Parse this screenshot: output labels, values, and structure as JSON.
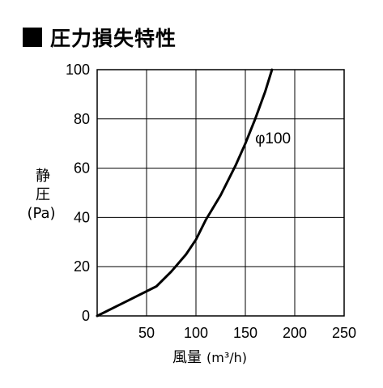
{
  "title": "圧力損失特性",
  "chart_data": {
    "type": "line",
    "title": "圧力損失特性",
    "xlabel": "風量 (m³/h)",
    "xlabel_main": "風量",
    "xlabel_unit": "(m³/h)",
    "ylabel_line1": "静",
    "ylabel_line2": "圧",
    "ylabel_unit": "(Pa)",
    "xlim": [
      0,
      250
    ],
    "ylim": [
      0,
      100
    ],
    "xticks": [
      50,
      100,
      150,
      200,
      250
    ],
    "yticks": [
      0,
      20,
      40,
      60,
      80,
      100
    ],
    "grid": true,
    "series": [
      {
        "name": "φ100",
        "color": "#000000",
        "x": [
          0,
          30,
          60,
          75,
          90,
          100,
          110,
          125,
          140,
          150,
          160,
          170,
          177
        ],
        "y": [
          0,
          6,
          12,
          18,
          25,
          31,
          39,
          49,
          61,
          70,
          80,
          91,
          100
        ]
      }
    ]
  }
}
